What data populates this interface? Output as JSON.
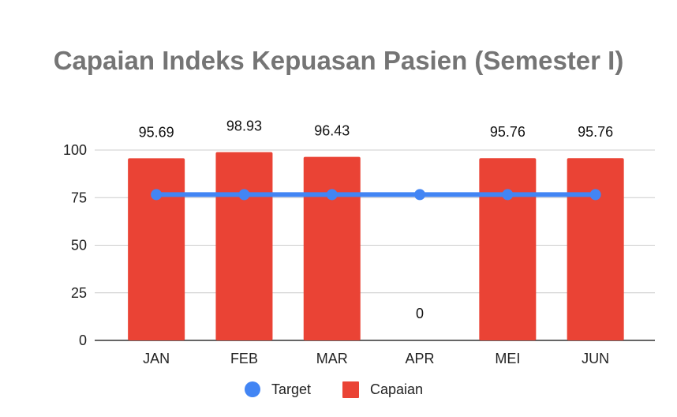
{
  "chart_data": {
    "type": "bar",
    "title": "Capaian Indeks Kepuasan Pasien (Semester I)",
    "categories": [
      "JAN",
      "FEB",
      "MAR",
      "APR",
      "MEI",
      "JUN"
    ],
    "series": [
      {
        "name": "Capaian",
        "type": "bar",
        "color": "#ea4335",
        "values": [
          95.69,
          98.93,
          96.43,
          0,
          95.76,
          95.76
        ],
        "data_labels": [
          "95.69",
          "98.93",
          "96.43",
          "0",
          "95.76",
          "95.76"
        ]
      },
      {
        "name": "Target",
        "type": "line",
        "color": "#4285f4",
        "values": [
          76.6,
          76.6,
          76.6,
          76.6,
          76.6,
          76.6
        ]
      }
    ],
    "ylim": [
      0,
      100
    ],
    "yticks": [
      0,
      25,
      50,
      75,
      100
    ],
    "grid": true,
    "legend": "bottom",
    "xlabel": "",
    "ylabel": ""
  }
}
